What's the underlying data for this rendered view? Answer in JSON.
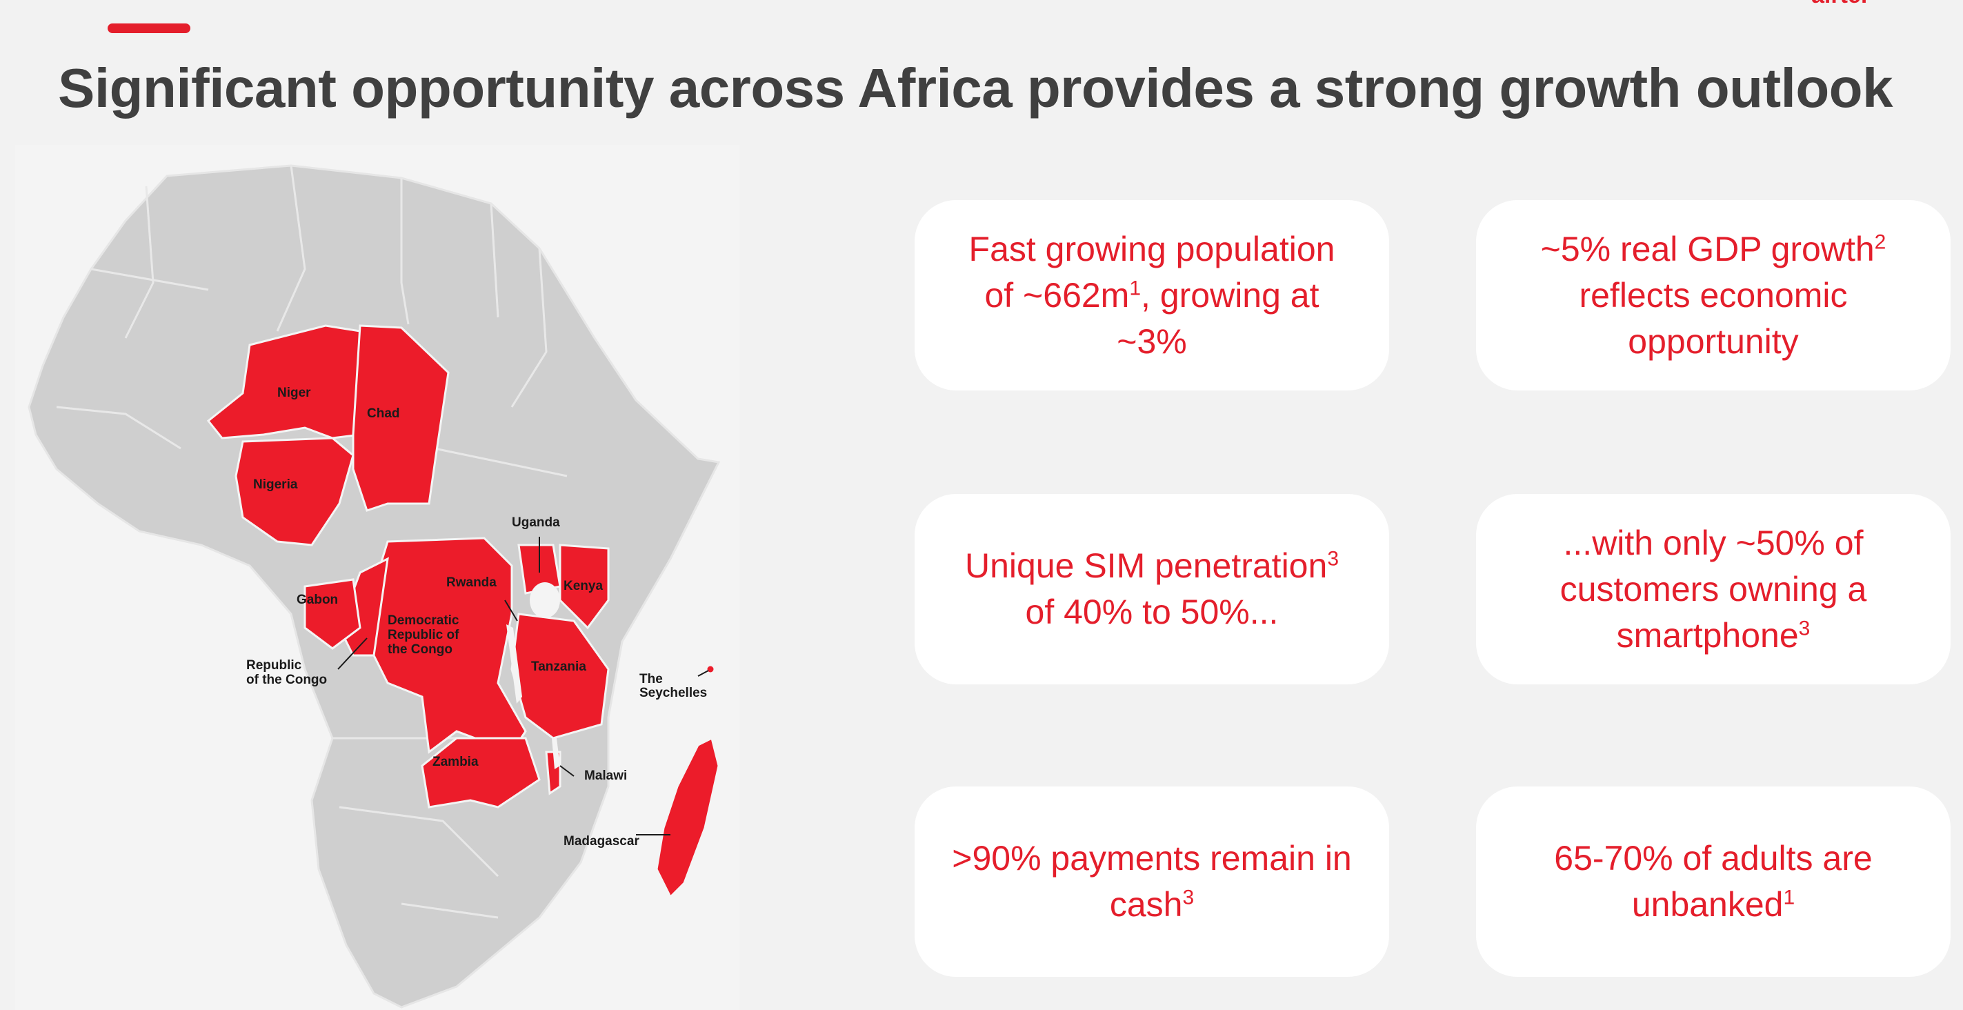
{
  "header": {
    "title": "Significant opportunity across Africa provides a strong growth outlook",
    "logo_text": "airtel"
  },
  "colors": {
    "accent": "#e41e2b",
    "title": "#404040",
    "map_land": "#cfcfcf",
    "highlight": "#ec1c2a",
    "background": "#f2f2f2",
    "card": "#ffffff"
  },
  "map": {
    "labels": {
      "niger": "Niger",
      "chad": "Chad",
      "nigeria": "Nigeria",
      "uganda": "Uganda",
      "rwanda": "Rwanda",
      "kenya": "Kenya",
      "gabon": "Gabon",
      "drc_1": "Democratic",
      "drc_2": "Republic of",
      "drc_3": "the Congo",
      "congo_1": "Republic",
      "congo_2": "of the Congo",
      "tanzania": "Tanzania",
      "seychelles_1": "The",
      "seychelles_2": "Seychelles",
      "zambia": "Zambia",
      "malawi": "Malawi",
      "madagascar": "Madagascar"
    }
  },
  "cards": [
    {
      "line1": "Fast growing population",
      "line2a": "of ~662m",
      "line2sup": "1",
      "line2b": ", growing at",
      "line3": "~3%"
    },
    {
      "line1a": "~5% real GDP growth",
      "line1sup": "2",
      "line2": "reflects economic",
      "line3": "opportunity"
    },
    {
      "line1a": "Unique SIM penetration",
      "line1sup": "3",
      "line2": "of 40% to 50%..."
    },
    {
      "line1": "...with only ~50% of",
      "line2": "customers owning a",
      "line3a": "smartphone",
      "line3sup": "3"
    },
    {
      "line1": ">90% payments remain in",
      "line2a": "cash",
      "line2sup": "3"
    },
    {
      "line1": "65-70% of adults are",
      "line2a": "unbanked",
      "line2sup": "1"
    }
  ]
}
